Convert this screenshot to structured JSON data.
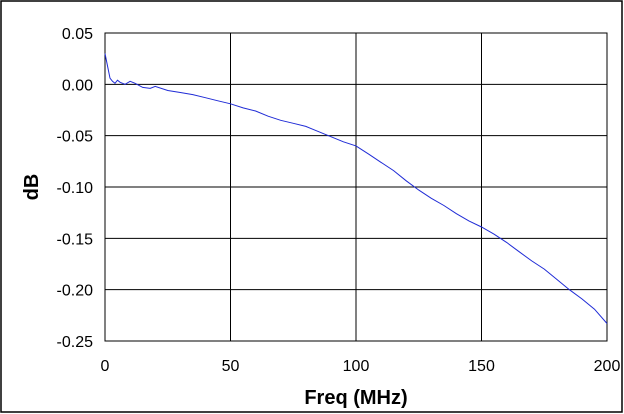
{
  "chart_data": {
    "type": "line",
    "xlabel": "Freq (MHz)",
    "ylabel": "dB",
    "xlim": [
      0,
      200
    ],
    "ylim": [
      -0.25,
      0.05
    ],
    "x_ticks": [
      "0",
      "50",
      "100",
      "150",
      "200"
    ],
    "y_ticks": [
      "0.05",
      "0.00",
      "-0.05",
      "-0.10",
      "-0.15",
      "-0.20",
      "-0.25"
    ],
    "grid": true,
    "series": [
      {
        "color": "#1f2bd6",
        "x": [
          0,
          1,
          2,
          3,
          4,
          5,
          6,
          8,
          10,
          12,
          15,
          18,
          20,
          25,
          30,
          35,
          40,
          45,
          50,
          55,
          60,
          65,
          70,
          75,
          80,
          85,
          90,
          95,
          100,
          105,
          110,
          115,
          120,
          125,
          130,
          135,
          140,
          145,
          150,
          155,
          160,
          165,
          170,
          175,
          180,
          185,
          190,
          195,
          200
        ],
        "y": [
          0.03,
          0.018,
          0.006,
          0.003,
          0.001,
          0.004,
          0.002,
          0.0,
          0.003,
          0.001,
          -0.003,
          -0.004,
          -0.002,
          -0.006,
          -0.008,
          -0.01,
          -0.013,
          -0.016,
          -0.019,
          -0.023,
          -0.026,
          -0.031,
          -0.035,
          -0.038,
          -0.041,
          -0.046,
          -0.051,
          -0.056,
          -0.06,
          -0.068,
          -0.076,
          -0.084,
          -0.094,
          -0.103,
          -0.111,
          -0.118,
          -0.126,
          -0.133,
          -0.139,
          -0.146,
          -0.154,
          -0.163,
          -0.172,
          -0.18,
          -0.19,
          -0.2,
          -0.209,
          -0.219,
          -0.233
        ]
      }
    ]
  }
}
